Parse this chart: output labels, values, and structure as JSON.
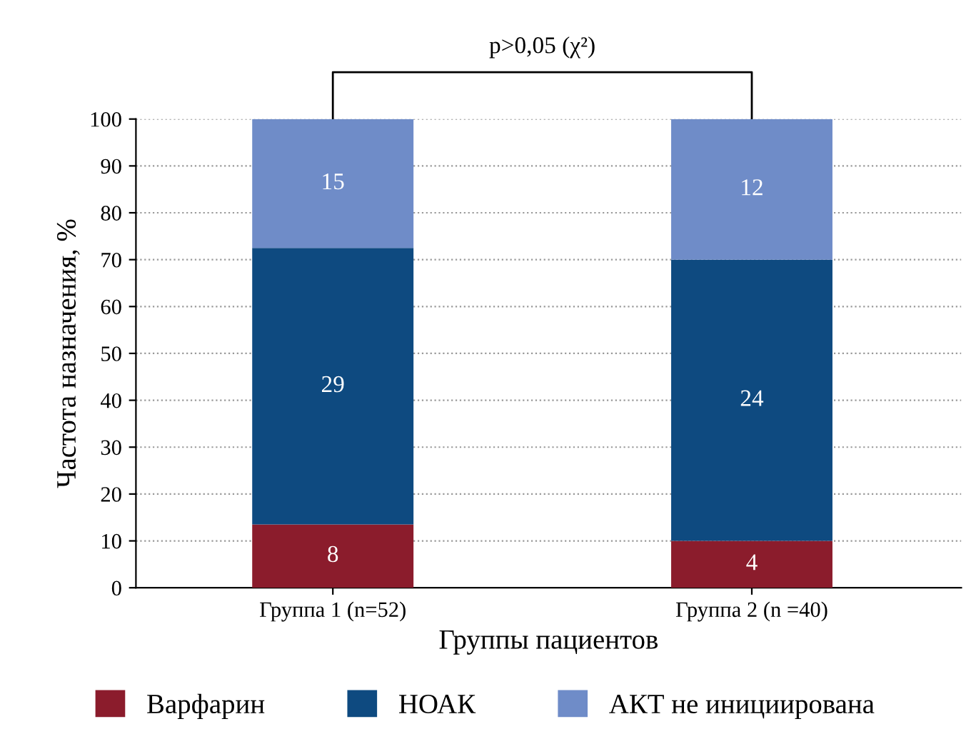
{
  "chart_data": {
    "type": "bar",
    "stacked": true,
    "xlabel": "Группы пациентов",
    "ylabel": "Частота назначения, %",
    "categories": [
      "Группа 1 (n=52)",
      "Группа 2 (n =40)"
    ],
    "series": [
      {
        "name": "Варфарин",
        "color": "#8b1c2c",
        "values": [
          13.5,
          10
        ]
      },
      {
        "name": "НОАК",
        "color": "#0e4a80",
        "values": [
          59,
          60
        ]
      },
      {
        "name": "АКТ не инициирована",
        "color": "#6f8cc8",
        "values": [
          27.5,
          30
        ]
      }
    ],
    "ylim": [
      0,
      100
    ],
    "yticks": [
      0,
      10,
      20,
      30,
      40,
      50,
      60,
      70,
      80,
      90,
      100
    ],
    "grid": "y",
    "legend": "bottom",
    "annotations": [
      "p>0,05 (χ²)",
      "8",
      "29",
      "15",
      "4",
      "24",
      "12"
    ]
  }
}
